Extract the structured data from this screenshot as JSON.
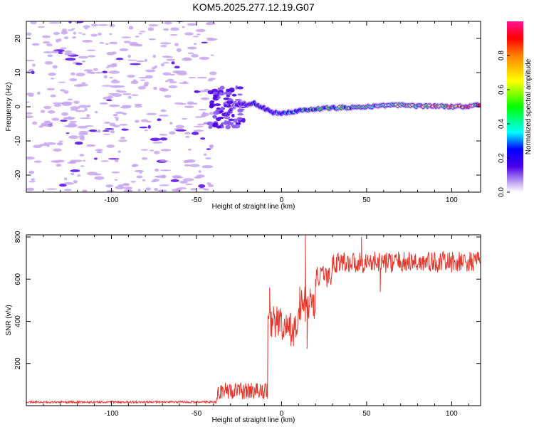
{
  "title": "KOM5.2025.277.12.19.G07",
  "colors": {
    "snr_line": "#e8362c",
    "weak_blob": "#c7a4ef",
    "frame": "#000000"
  },
  "chart_data": [
    {
      "type": "heatmap",
      "name": "spectrogram",
      "xlabel": "Height of straight line (km)",
      "ylabel": "Frequency (Hz)",
      "xlim": [
        -150,
        117
      ],
      "ylim": [
        -25,
        25
      ],
      "xticks": [
        -100,
        -50,
        0,
        50,
        100
      ],
      "yticks": [
        -20,
        -10,
        0,
        10,
        20
      ],
      "ridge": {
        "description_x": [
          -32,
          -28,
          -24,
          -20,
          -16,
          -12,
          -8,
          -4,
          0,
          10,
          20,
          30,
          40,
          50,
          60,
          70,
          80,
          90,
          100,
          110,
          117
        ],
        "freq_hz": [
          -2.5,
          0.5,
          1.0,
          0.5,
          1.0,
          0.0,
          -1.0,
          -1.8,
          -1.8,
          -1.2,
          -0.8,
          -0.3,
          -0.2,
          0.0,
          0.3,
          0.5,
          0.2,
          0.3,
          0.0,
          0.2,
          0.5
        ],
        "amplitude": [
          0.15,
          0.12,
          0.2,
          0.3,
          0.35,
          0.3,
          0.3,
          0.35,
          0.4,
          0.45,
          0.5,
          0.55,
          0.55,
          0.6,
          0.65,
          0.7,
          0.7,
          0.75,
          0.8,
          0.85,
          0.9
        ]
      },
      "colorbar": {
        "label": "Normalized spectral amplitude",
        "range": [
          0,
          1
        ],
        "ticks": [
          "0.0",
          "0.2",
          "0.4",
          "0.6",
          "0.8"
        ]
      }
    },
    {
      "type": "line",
      "name": "snr",
      "xlabel": "Height of straight line (km)",
      "ylabel": "SNR (v/v)",
      "xlim": [
        -150,
        117
      ],
      "ylim": [
        0,
        810
      ],
      "xticks": [
        -100,
        -50,
        0,
        50,
        100
      ],
      "yticks": [
        200,
        400,
        600,
        800
      ],
      "segments": [
        {
          "x_start": -150,
          "x_end": -38,
          "mean": 15,
          "noise": 10
        },
        {
          "x_start": -38,
          "x_end": -8,
          "mean": 70,
          "noise": 40
        },
        {
          "x_start": -8,
          "x_end": 0,
          "mean": 400,
          "noise": 80
        },
        {
          "x_start": 0,
          "x_end": 10,
          "mean": 360,
          "noise": 80
        },
        {
          "x_start": 10,
          "x_end": 20,
          "mean": 480,
          "noise": 90
        },
        {
          "x_start": 20,
          "x_end": 30,
          "mean": 610,
          "noise": 50
        },
        {
          "x_start": 30,
          "x_end": 117,
          "mean": 680,
          "noise": 50
        }
      ],
      "spikes": [
        {
          "x": -7,
          "y": 560
        },
        {
          "x": 14,
          "y": 810
        },
        {
          "x": 15,
          "y": 270
        },
        {
          "x": 58,
          "y": 540
        },
        {
          "x": 47,
          "y": 800
        }
      ]
    }
  ]
}
